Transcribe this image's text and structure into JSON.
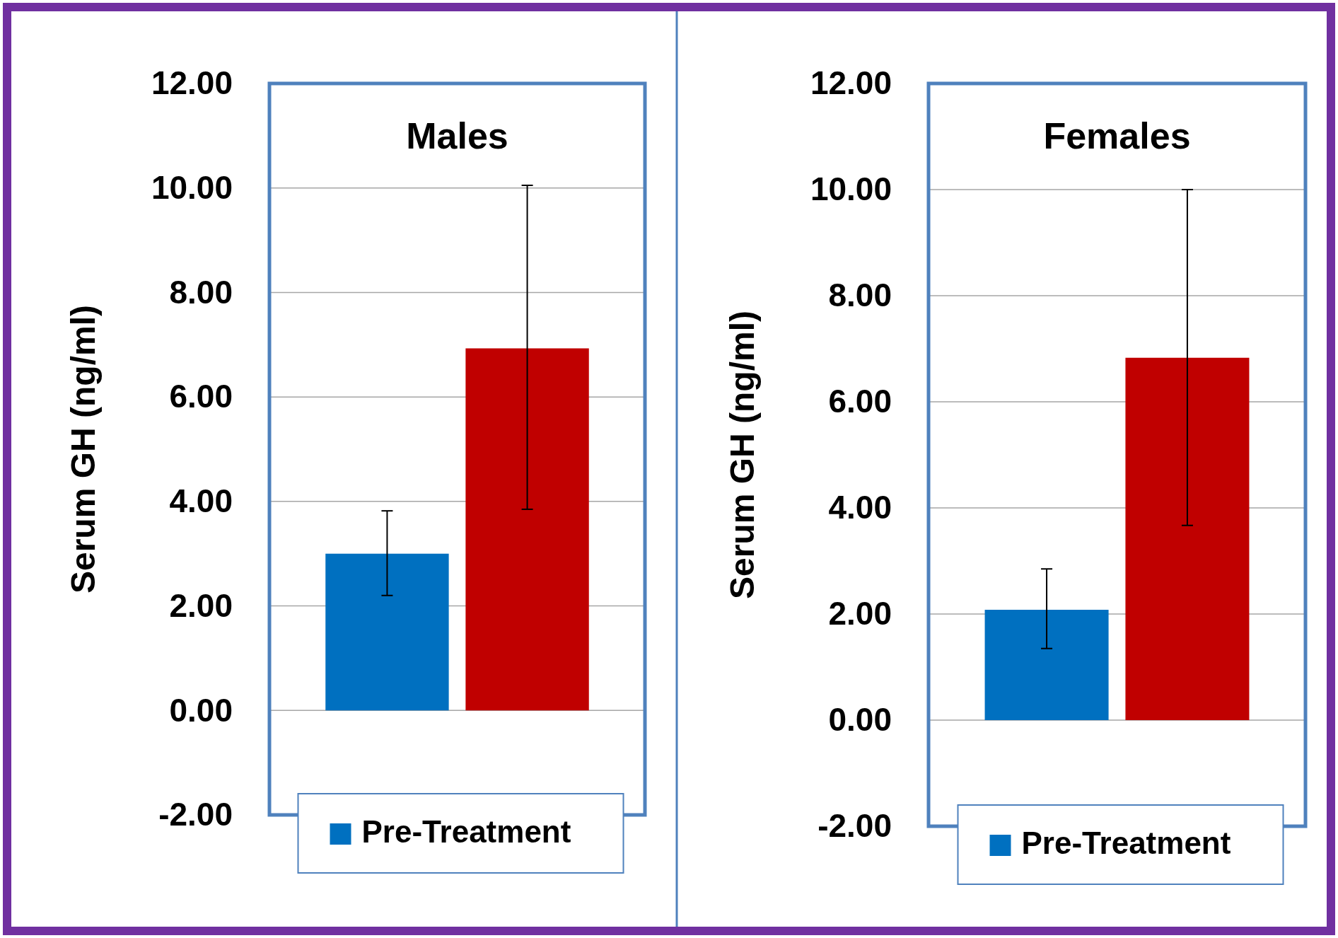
{
  "chart_data": [
    {
      "type": "bar",
      "title": "Males",
      "ylabel": "Serum GH (ng/ml)",
      "categories": [
        null,
        null
      ],
      "ylim": [
        -2,
        12
      ],
      "yticks": [
        {
          "value": -2,
          "label": "-2.00"
        },
        {
          "value": 0,
          "label": "0.00"
        },
        {
          "value": 2,
          "label": "2.00"
        },
        {
          "value": 4,
          "label": "4.00"
        },
        {
          "value": 6,
          "label": "6.00"
        },
        {
          "value": 8,
          "label": "8.00"
        },
        {
          "value": 10,
          "label": "10.00"
        },
        {
          "value": 12,
          "label": "12.00"
        }
      ],
      "grid": "y",
      "legend": "bottom",
      "tick_labels": "y",
      "series": [
        {
          "name": "Pre-Treatment",
          "color": "#0070c0",
          "values": [
            3.0,
            null
          ],
          "errors": [
            [
              2.2,
              3.82
            ],
            null
          ]
        },
        {
          "color": "#c00000",
          "values": [
            null,
            6.93
          ],
          "errors": [
            null,
            [
              3.85,
              10.05
            ]
          ]
        }
      ]
    },
    {
      "type": "bar",
      "title": "Females",
      "ylabel": "Serum GH (ng/ml)",
      "categories": [
        null,
        null
      ],
      "ylim": [
        -2,
        12
      ],
      "yticks": [
        {
          "value": -2,
          "label": "-2.00"
        },
        {
          "value": 0,
          "label": "0.00"
        },
        {
          "value": 2,
          "label": "2.00"
        },
        {
          "value": 4,
          "label": "4.00"
        },
        {
          "value": 6,
          "label": "6.00"
        },
        {
          "value": 8,
          "label": "8.00"
        },
        {
          "value": 10,
          "label": "10.00"
        },
        {
          "value": 12,
          "label": "12.00"
        }
      ],
      "grid": "y",
      "legend": "bottom",
      "tick_labels": "y",
      "series": [
        {
          "name": "Pre-Treatment",
          "color": "#0070c0",
          "values": [
            2.08,
            null
          ],
          "errors": [
            [
              1.35,
              2.85
            ],
            null
          ]
        },
        {
          "color": "#c00000",
          "values": [
            null,
            6.83
          ],
          "errors": [
            null,
            [
              3.67,
              10.0
            ]
          ]
        }
      ]
    }
  ]
}
